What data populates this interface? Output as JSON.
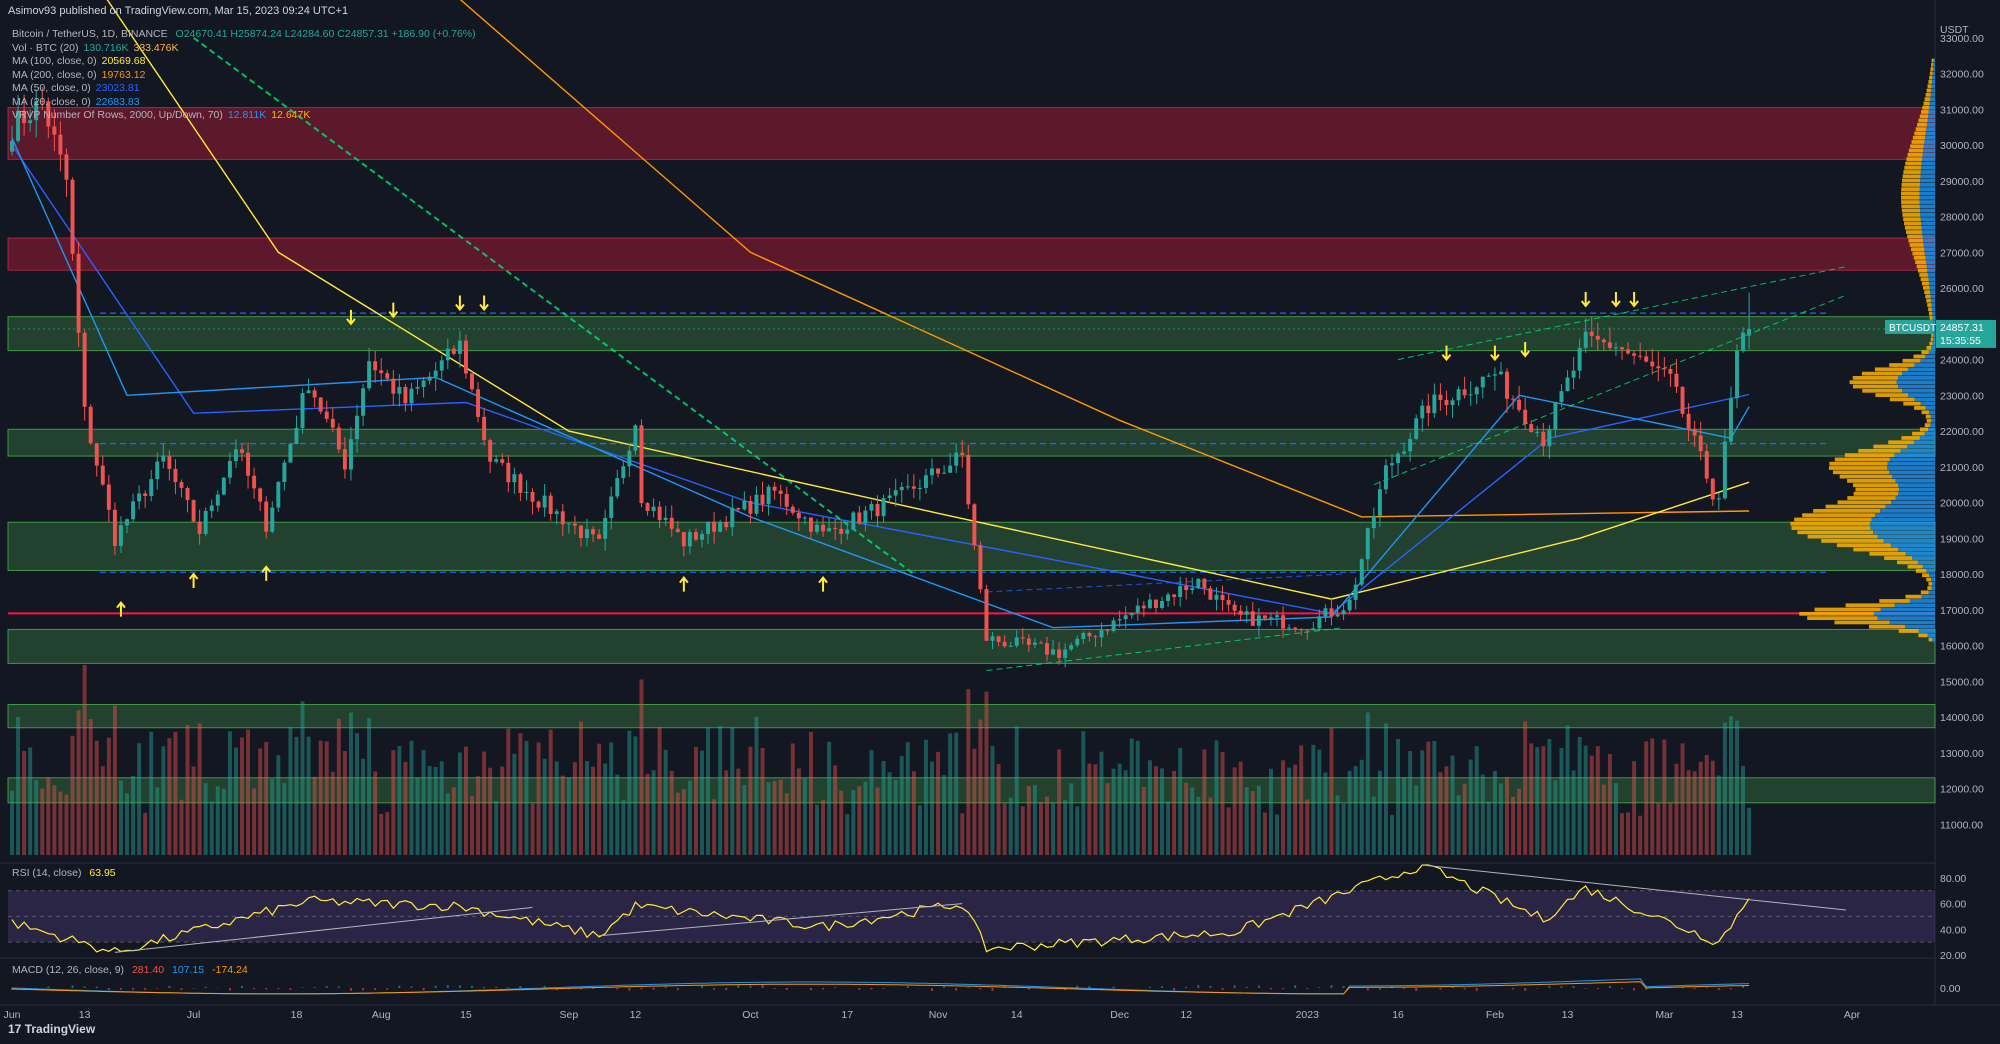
{
  "published_line": "Asimov93 published on TradingView.com, Mar 15, 2023 09:24 UTC+1",
  "footer_brand": "TradingView",
  "legend": {
    "title": "Bitcoin / TetherUS, 1D, BINANCE",
    "ohlc": "O24670.41 H25874.24 L24284.60 C24857.31 +186.90 (+0.76%)",
    "lines": [
      {
        "label": "Vol · BTC (20)",
        "v1": "130.716K",
        "v1_color": "#26a69a",
        "v2": "333.476K",
        "v2_color": "#ffb74d"
      },
      {
        "label": "MA (100, close, 0)",
        "v1": "20569.68",
        "v1_color": "#ffeb3b",
        "v2": "",
        "v2_color": "#ffeb3b"
      },
      {
        "label": "MA (200, close, 0)",
        "v1": "19763.12",
        "v1_color": "#ff9800",
        "v2": "",
        "v2_color": "#ff9800"
      },
      {
        "label": "MA (50, close, 0)",
        "v1": "23023.81",
        "v1_color": "#2962ff",
        "v2": "",
        "v2_color": "#2962ff"
      },
      {
        "label": "MA (20, close, 0)",
        "v1": "22683.83",
        "v1_color": "#2196f3",
        "v2": "",
        "v2_color": "#2196f3"
      },
      {
        "label": "VRVP Number Of Rows, 2000, Up/Down, 70)",
        "v1": "12.811K",
        "v1_color": "#2196f3",
        "v2": "12.647K",
        "v2_color": "#ffb300"
      }
    ]
  },
  "rsi_label": {
    "text": "RSI (14, close)",
    "value": "63.95",
    "color": "#ffeb3b"
  },
  "macd_label": {
    "text": "MACD (12, 26, close, 9)",
    "v1": "281.40",
    "v2": "107.15",
    "v3": "-174.24"
  },
  "price_tag": {
    "symbol": "BTCUSDT",
    "price": "24857.31",
    "countdown": "15:35:55"
  },
  "colors": {
    "background": "#131722",
    "up": "#26a69a",
    "down": "#ef5350",
    "green_zone": "#4caf50",
    "red_zone": "#b71c3a",
    "support_line": "#ff1744",
    "dashed_level": "#2962ff",
    "trend_green": "#00e676",
    "arrow": "#ffeb3b",
    "rsi_line": "#ffeb3b",
    "rsi_band": "#7e57c2"
  },
  "chart_data": {
    "type": "candlestick",
    "title": "Bitcoin / TetherUS, 1D, BINANCE",
    "y_axis_unit": "USDT",
    "ylim": [
      10000,
      33500
    ],
    "y_ticks": [
      11000,
      12000,
      13000,
      14000,
      15000,
      16000,
      17000,
      18000,
      19000,
      20000,
      21000,
      22000,
      23000,
      24000,
      25000,
      26000,
      27000,
      28000,
      29000,
      30000,
      31000,
      32000,
      33000
    ],
    "x_tick_labels": [
      "Jun",
      "13",
      "Jul",
      "18",
      "Aug",
      "15",
      "Sep",
      "12",
      "Oct",
      "17",
      "Nov",
      "14",
      "Dec",
      "12",
      "2023",
      "16",
      "Feb",
      "13",
      "Mar",
      "13",
      "Apr"
    ],
    "price_anchors": [
      {
        "date": "2022-06-01",
        "close": 30500
      },
      {
        "date": "2022-06-06",
        "close": 31200
      },
      {
        "date": "2022-06-10",
        "close": 29000
      },
      {
        "date": "2022-06-13",
        "close": 22500
      },
      {
        "date": "2022-06-18",
        "close": 19000
      },
      {
        "date": "2022-06-26",
        "close": 21200
      },
      {
        "date": "2022-07-02",
        "close": 19200
      },
      {
        "date": "2022-07-08",
        "close": 21600
      },
      {
        "date": "2022-07-13",
        "close": 19400
      },
      {
        "date": "2022-07-20",
        "close": 23400
      },
      {
        "date": "2022-07-26",
        "close": 21100
      },
      {
        "date": "2022-07-30",
        "close": 24000
      },
      {
        "date": "2022-08-05",
        "close": 22800
      },
      {
        "date": "2022-08-14",
        "close": 24400
      },
      {
        "date": "2022-08-19",
        "close": 21200
      },
      {
        "date": "2022-08-26",
        "close": 20200
      },
      {
        "date": "2022-09-06",
        "close": 18800
      },
      {
        "date": "2022-09-12",
        "close": 22300
      },
      {
        "date": "2022-09-13",
        "close": 20200
      },
      {
        "date": "2022-09-20",
        "close": 18900
      },
      {
        "date": "2022-10-05",
        "close": 20300
      },
      {
        "date": "2022-10-13",
        "close": 19100
      },
      {
        "date": "2022-10-25",
        "close": 20100
      },
      {
        "date": "2022-11-05",
        "close": 21300
      },
      {
        "date": "2022-11-09",
        "close": 16200
      },
      {
        "date": "2022-11-21",
        "close": 15800
      },
      {
        "date": "2022-12-05",
        "close": 17100
      },
      {
        "date": "2022-12-14",
        "close": 17800
      },
      {
        "date": "2022-12-20",
        "close": 16800
      },
      {
        "date": "2023-01-01",
        "close": 16600
      },
      {
        "date": "2023-01-08",
        "close": 17200
      },
      {
        "date": "2023-01-14",
        "close": 20900
      },
      {
        "date": "2023-01-21",
        "close": 22700
      },
      {
        "date": "2023-02-01",
        "close": 23600
      },
      {
        "date": "2023-02-09",
        "close": 21800
      },
      {
        "date": "2023-02-16",
        "close": 24500
      },
      {
        "date": "2023-02-21",
        "close": 24400
      },
      {
        "date": "2023-03-02",
        "close": 23400
      },
      {
        "date": "2023-03-09",
        "close": 20300
      },
      {
        "date": "2023-03-10",
        "close": 20200
      },
      {
        "date": "2023-03-13",
        "close": 24100
      },
      {
        "date": "2023-03-15",
        "close": 24857.31
      }
    ],
    "moving_averages": [
      {
        "name": "MA (200, close, 0)",
        "color": "#ff9800",
        "points": [
          {
            "date": "2022-06-01",
            "value": 48000
          },
          {
            "date": "2022-08-01",
            "value": 36000
          },
          {
            "date": "2022-10-01",
            "value": 27000
          },
          {
            "date": "2022-12-01",
            "value": 22300
          },
          {
            "date": "2023-01-10",
            "value": 19600
          },
          {
            "date": "2023-03-15",
            "value": 19763
          }
        ]
      },
      {
        "name": "MA (100, close, 0)",
        "color": "#ffeb3b",
        "points": [
          {
            "date": "2022-06-01",
            "value": 38000
          },
          {
            "date": "2022-07-15",
            "value": 27000
          },
          {
            "date": "2022-09-01",
            "value": 22000
          },
          {
            "date": "2022-11-01",
            "value": 19700
          },
          {
            "date": "2023-01-05",
            "value": 17300
          },
          {
            "date": "2023-02-15",
            "value": 19000
          },
          {
            "date": "2023-03-15",
            "value": 20569
          }
        ]
      },
      {
        "name": "MA (50, close, 0)",
        "color": "#2962ff",
        "points": [
          {
            "date": "2022-06-01",
            "value": 30000
          },
          {
            "date": "2022-07-01",
            "value": 22500
          },
          {
            "date": "2022-08-15",
            "value": 22800
          },
          {
            "date": "2022-10-01",
            "value": 20000
          },
          {
            "date": "2022-11-20",
            "value": 18400
          },
          {
            "date": "2023-01-05",
            "value": 16900
          },
          {
            "date": "2023-02-10",
            "value": 21800
          },
          {
            "date": "2023-03-15",
            "value": 23023
          }
        ]
      },
      {
        "name": "MA (20, close, 0)",
        "color": "#2196f3",
        "points": [
          {
            "date": "2022-06-01",
            "value": 30200
          },
          {
            "date": "2022-06-20",
            "value": 23000
          },
          {
            "date": "2022-08-10",
            "value": 23500
          },
          {
            "date": "2022-10-01",
            "value": 19600
          },
          {
            "date": "2022-11-20",
            "value": 16500
          },
          {
            "date": "2023-01-05",
            "value": 16800
          },
          {
            "date": "2023-02-05",
            "value": 23000
          },
          {
            "date": "2023-03-12",
            "value": 21800
          },
          {
            "date": "2023-03-15",
            "value": 22683
          }
        ]
      }
    ],
    "green_zones": [
      [
        24250,
        25200
      ],
      [
        21300,
        22050
      ],
      [
        18100,
        19450
      ],
      [
        15500,
        16450
      ],
      [
        13700,
        14350
      ],
      [
        11600,
        12300
      ]
    ],
    "red_zones": [
      [
        29600,
        31050
      ],
      [
        26500,
        27400
      ]
    ],
    "red_support_level": 16900,
    "dashed_levels": [
      25300,
      21650,
      18050
    ],
    "rsi": {
      "ylim": [
        20,
        90
      ],
      "ticks": [
        20.0,
        40.0,
        60.0,
        80.0
      ],
      "overbought": 70,
      "oversold": 30,
      "points": [
        {
          "date": "2022-06-01",
          "value": 45
        },
        {
          "date": "2022-06-18",
          "value": 22
        },
        {
          "date": "2022-07-20",
          "value": 62
        },
        {
          "date": "2022-08-14",
          "value": 58
        },
        {
          "date": "2022-09-06",
          "value": 35
        },
        {
          "date": "2022-09-12",
          "value": 58
        },
        {
          "date": "2022-10-13",
          "value": 42
        },
        {
          "date": "2022-11-05",
          "value": 60
        },
        {
          "date": "2022-11-09",
          "value": 25
        },
        {
          "date": "2022-12-20",
          "value": 38
        },
        {
          "date": "2023-01-20",
          "value": 90
        },
        {
          "date": "2023-02-09",
          "value": 48
        },
        {
          "date": "2023-02-16",
          "value": 72
        },
        {
          "date": "2023-03-10",
          "value": 30
        },
        {
          "date": "2023-03-15",
          "value": 63.95
        }
      ]
    },
    "macd": {
      "ticks": [
        0.0
      ]
    }
  }
}
